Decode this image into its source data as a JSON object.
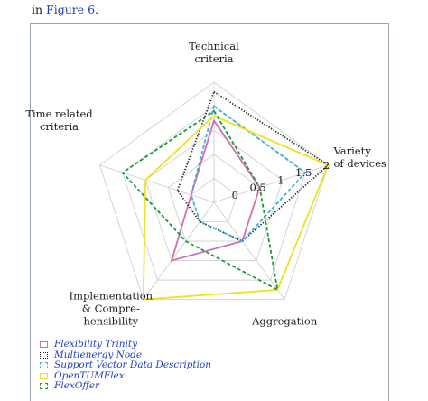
{
  "intro": {
    "prefix": "in ",
    "link": "Figure 6",
    "suffix": "."
  },
  "chart_data": {
    "type": "radar",
    "title": "",
    "axes": [
      "Technical criteria",
      "Variety of devices",
      "Aggregation",
      "Implementation & Comprehensibility",
      "Time related criteria"
    ],
    "axis_label_lines": [
      [
        "Technical",
        "criteria"
      ],
      [
        "Variety",
        "of devices"
      ],
      [
        "Aggregation"
      ],
      [
        "Implementation",
        "& Compre-",
        "hensibility"
      ],
      [
        "Time related",
        "criteria"
      ]
    ],
    "range": [
      -0.5,
      2
    ],
    "tick_values": [
      0,
      0.5,
      1,
      1.5,
      2
    ],
    "tick_labels": [
      "0",
      "0.5",
      "1",
      "1.5",
      "2"
    ],
    "grid": true,
    "legend_position": "bottom-left",
    "series": [
      {
        "name": "Flexibility Trinity",
        "values": [
          1.2,
          0.5,
          0.5,
          1.0,
          0.0
        ],
        "color": "#d070b0",
        "dash": "solid"
      },
      {
        "name": "Multienergy Node",
        "values": [
          1.8,
          2.0,
          0.5,
          0.0,
          0.3
        ],
        "color": "#1a1a1a",
        "dash": "dotted"
      },
      {
        "name": "Support Vector Data Description",
        "values": [
          1.5,
          1.5,
          0.5,
          0.0,
          0.0
        ],
        "color": "#3ab0d8",
        "dash": "dashed"
      },
      {
        "name": "OpenTUMFlex",
        "values": [
          1.3,
          2.0,
          1.75,
          2.0,
          1.0
        ],
        "color": "#f0e020",
        "dash": "solid"
      },
      {
        "name": "FlexOffer",
        "values": [
          1.4,
          0.5,
          1.75,
          0.5,
          1.5
        ],
        "color": "#1a9a3a",
        "dash": "dashed"
      }
    ]
  }
}
